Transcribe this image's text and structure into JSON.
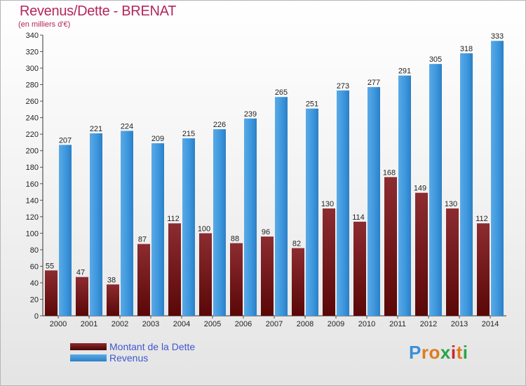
{
  "title": "Revenus/Dette - BRENAT",
  "subtitle": "(en milliers d'€)",
  "colors": {
    "title": "#b3265a",
    "dette": "#7a1a1a",
    "revenus": "#3b95dc",
    "legend_text": "#3f57d0"
  },
  "chart_data": {
    "type": "bar",
    "categories": [
      "2000",
      "2001",
      "2002",
      "2003",
      "2004",
      "2005",
      "2006",
      "2007",
      "2008",
      "2009",
      "2010",
      "2011",
      "2012",
      "2013",
      "2014"
    ],
    "series": [
      {
        "name": "Montant de la Dette",
        "values": [
          55,
          47,
          38,
          87,
          112,
          100,
          88,
          96,
          82,
          130,
          114,
          168,
          149,
          130,
          112
        ]
      },
      {
        "name": "Revenus",
        "values": [
          207,
          221,
          224,
          209,
          215,
          226,
          239,
          265,
          251,
          273,
          277,
          291,
          305,
          318,
          333
        ]
      }
    ],
    "ylim": [
      0,
      340
    ],
    "yticks": [
      0,
      20,
      40,
      60,
      80,
      100,
      120,
      140,
      160,
      180,
      200,
      220,
      240,
      260,
      280,
      300,
      320,
      340
    ],
    "grid": false,
    "legend_position": "bottom-left"
  },
  "legend": [
    {
      "label": "Montant de la Dette"
    },
    {
      "label": "Revenus"
    }
  ],
  "logo": {
    "letters": [
      "P",
      "r",
      "o",
      "x",
      "i",
      "t",
      "i"
    ],
    "letter_colors": [
      "#3a8fd6",
      "#e07b1c",
      "#e07b1c",
      "#2aa34a",
      "#c8262e",
      "#e07b1c",
      "#2aa34a"
    ]
  }
}
